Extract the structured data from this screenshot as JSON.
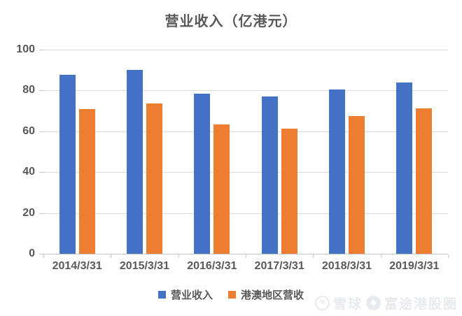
{
  "chart_data": {
    "type": "bar",
    "title": "营业收入（亿港元）",
    "categories": [
      "2014/3/31",
      "2015/3/31",
      "2016/3/31",
      "2017/3/31",
      "2018/3/31",
      "2019/3/31"
    ],
    "series": [
      {
        "name": "营业收入",
        "color": "#4472C4",
        "values": [
          87.6,
          90.2,
          78.3,
          77.1,
          80.4,
          84.0
        ]
      },
      {
        "name": "港澳地区营收",
        "color": "#ED7D31",
        "values": [
          71.0,
          73.7,
          63.4,
          61.2,
          67.4,
          71.2
        ]
      }
    ],
    "xlabel": "",
    "ylabel": "",
    "ylim": [
      0,
      100
    ],
    "yticks": [
      0,
      20,
      40,
      60,
      80,
      100
    ],
    "grid": true,
    "legend_position": "bottom"
  },
  "colors": {
    "title_text": "#595959",
    "axis_text": "#595959",
    "gridline": "#D9D9D9",
    "series_blue": "#4472C4",
    "series_orange": "#ED7D31"
  },
  "watermark": {
    "site": "雪球",
    "brand": "富途港股圈"
  }
}
